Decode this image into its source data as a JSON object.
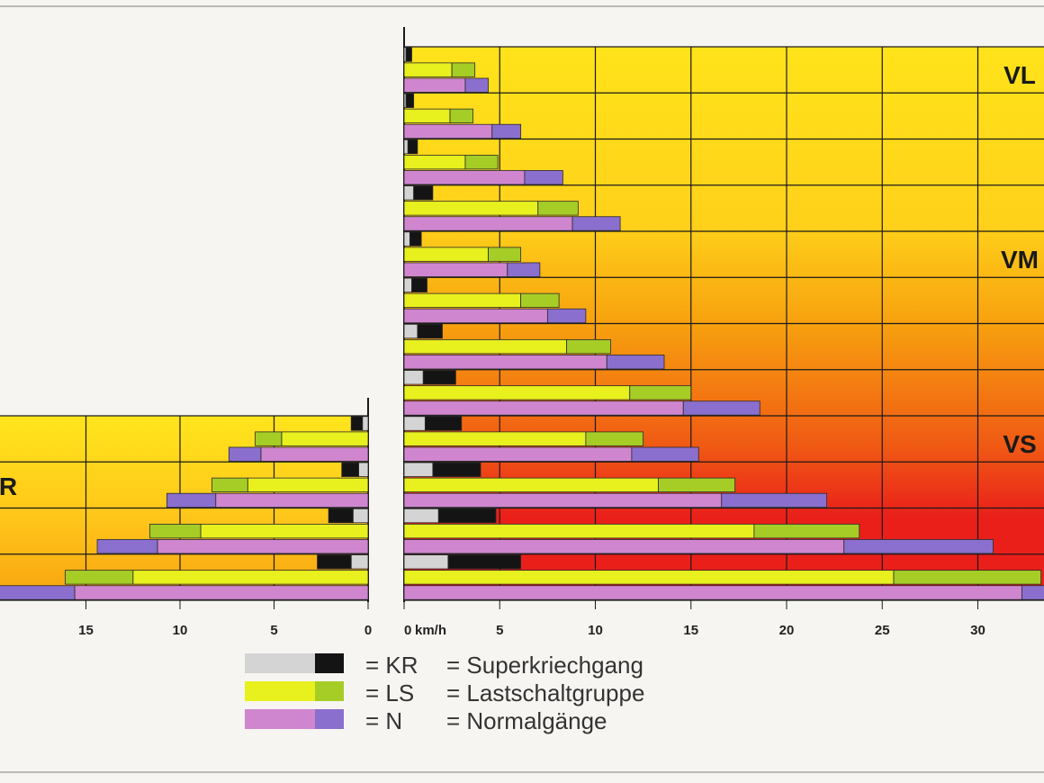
{
  "chart_data": {
    "type": "bar",
    "orientation": "horizontal stacked",
    "x_unit": "km/h",
    "forward": {
      "xlim": [
        0,
        33
      ],
      "ticks": [
        0,
        5,
        10,
        15,
        20,
        25,
        30
      ],
      "tick_labels": [
        "0",
        "5",
        "10",
        "15",
        "20",
        "25",
        "30"
      ],
      "unit_label": "km/h",
      "zone_labels": [
        "VL",
        "VM",
        "VS"
      ],
      "zone_colors": [
        "#ffe31a",
        "#f7a10e",
        "#ea1f1a"
      ],
      "series_names": [
        "KR",
        "LS",
        "N"
      ],
      "groups": [
        {
          "kr": [
            0.1,
            0.3
          ],
          "ls": [
            2.5,
            1.2
          ],
          "n": [
            3.2,
            1.2
          ]
        },
        {
          "kr": [
            0.1,
            0.4
          ],
          "ls": [
            2.4,
            1.2
          ],
          "n": [
            4.6,
            1.5
          ]
        },
        {
          "kr": [
            0.2,
            0.5
          ],
          "ls": [
            3.2,
            1.7
          ],
          "n": [
            6.3,
            2.0
          ]
        },
        {
          "kr": [
            0.5,
            1.0
          ],
          "ls": [
            7.0,
            2.1
          ],
          "n": [
            8.8,
            2.5
          ]
        },
        {
          "kr": [
            0.3,
            0.6
          ],
          "ls": [
            4.4,
            1.7
          ],
          "n": [
            5.4,
            1.7
          ]
        },
        {
          "kr": [
            0.4,
            0.8
          ],
          "ls": [
            6.1,
            2.0
          ],
          "n": [
            7.5,
            2.0
          ]
        },
        {
          "kr": [
            0.7,
            1.3
          ],
          "ls": [
            8.5,
            2.3
          ],
          "n": [
            10.6,
            3.0
          ]
        },
        {
          "kr": [
            1.0,
            1.7
          ],
          "ls": [
            11.8,
            3.2
          ],
          "n": [
            14.6,
            4.0
          ]
        },
        {
          "kr": [
            1.1,
            1.9
          ],
          "ls": [
            9.5,
            3.0
          ],
          "n": [
            11.9,
            3.5
          ]
        },
        {
          "kr": [
            1.5,
            2.5
          ],
          "ls": [
            13.3,
            4.0
          ],
          "n": [
            16.6,
            5.5
          ]
        },
        {
          "kr": [
            1.8,
            3.0
          ],
          "ls": [
            18.3,
            5.5
          ],
          "n": [
            23.0,
            7.8
          ]
        },
        {
          "kr": [
            2.3,
            3.8
          ],
          "ls": [
            25.6,
            7.7
          ],
          "n": [
            32.3,
            9.3
          ]
        }
      ]
    },
    "reverse": {
      "xlim": [
        0,
        19
      ],
      "ticks": [
        0,
        5,
        10,
        15
      ],
      "tick_labels": [
        "0",
        "5",
        "10",
        "15"
      ],
      "zone_label": "R",
      "groups": [
        {
          "kr": [
            0.3,
            0.6
          ],
          "ls": [
            4.6,
            1.4
          ],
          "n": [
            5.7,
            1.7
          ]
        },
        {
          "kr": [
            0.5,
            0.9
          ],
          "ls": [
            6.4,
            1.9
          ],
          "n": [
            8.1,
            2.6
          ]
        },
        {
          "kr": [
            0.8,
            1.3
          ],
          "ls": [
            8.9,
            2.7
          ],
          "n": [
            11.2,
            3.2
          ]
        },
        {
          "kr": [
            0.9,
            1.8
          ],
          "ls": [
            12.5,
            3.6
          ],
          "n": [
            15.6,
            5.1
          ]
        }
      ]
    }
  },
  "legend": [
    {
      "code": "= KR",
      "desc": "= Superkriechgang",
      "colors": [
        "#d4d4d4",
        "#141414"
      ]
    },
    {
      "code": "= LS",
      "desc": "= Lastschaltgruppe",
      "colors": [
        "#e8f01e",
        "#a6cd26"
      ]
    },
    {
      "code": "= N",
      "desc": "= Normalgänge",
      "colors": [
        "#cf86cf",
        "#8a6fce"
      ]
    }
  ]
}
